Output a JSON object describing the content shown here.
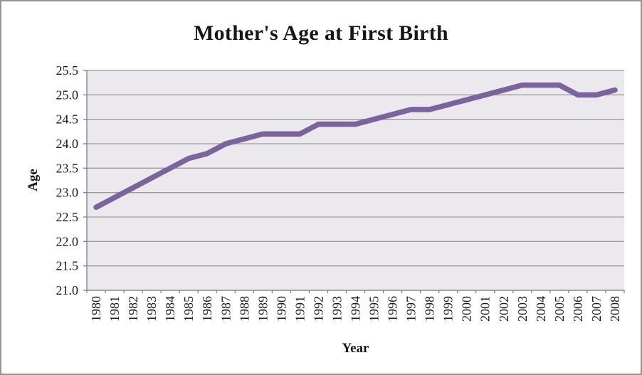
{
  "chart_data": {
    "type": "line",
    "title": "Mother's Age at First Birth",
    "xlabel": "Year",
    "ylabel": "Age",
    "categories": [
      1980,
      1981,
      1982,
      1983,
      1984,
      1985,
      1986,
      1987,
      1988,
      1989,
      1990,
      1991,
      1992,
      1993,
      1994,
      1995,
      1996,
      1997,
      1998,
      1999,
      2000,
      2001,
      2002,
      2003,
      2004,
      2005,
      2006,
      2007,
      2008
    ],
    "values": [
      22.7,
      22.9,
      23.1,
      23.3,
      23.5,
      23.7,
      23.8,
      24.0,
      24.1,
      24.2,
      24.2,
      24.2,
      24.4,
      24.4,
      24.4,
      24.5,
      24.6,
      24.7,
      24.7,
      24.8,
      24.9,
      25.0,
      25.1,
      25.2,
      25.2,
      25.2,
      25.0,
      25.0,
      25.1
    ],
    "ylim": [
      21.0,
      25.5
    ],
    "ytick_step": 0.5,
    "grid": "horizontal",
    "legend": "none",
    "line_color": "#7B649C",
    "plot_bg": "#EBE9EE",
    "gridline_color": "#9C9A9C",
    "axis_color": "#808080",
    "text_color": "#1A1A1A"
  }
}
